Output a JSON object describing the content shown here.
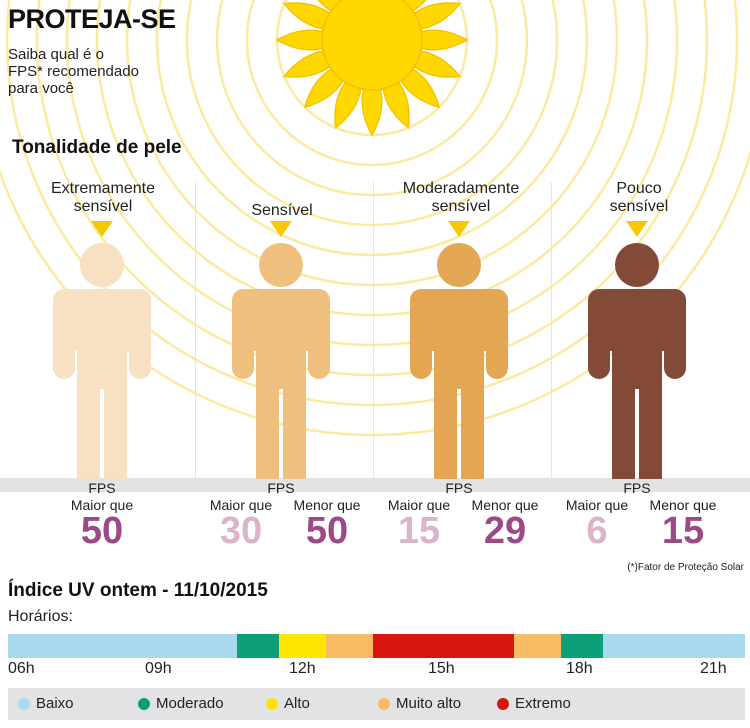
{
  "header": {
    "title": "PROTEJA-SE",
    "subtitle_lines": [
      "Saiba qual é o",
      "FPS* recomendado",
      "para você"
    ]
  },
  "skin": {
    "heading": "Tonalidade de pele",
    "columns": [
      {
        "label_lines": [
          "Extremamente",
          "sensível"
        ],
        "color": "#f8e1c3",
        "fps_label": "FPS",
        "comparisons": [
          {
            "label": "Maior que",
            "value": "50",
            "color": "#9c4a86"
          }
        ]
      },
      {
        "label_lines": [
          "Sensível"
        ],
        "color": "#efc07d",
        "fps_label": "FPS",
        "comparisons": [
          {
            "label": "Maior que",
            "value": "30",
            "color": "#d9b4cb"
          },
          {
            "label": "Menor que",
            "value": "50",
            "color": "#9c4a86"
          }
        ]
      },
      {
        "label_lines": [
          "Moderadamente",
          "sensível"
        ],
        "color": "#e3a652",
        "fps_label": "FPS",
        "comparisons": [
          {
            "label": "Maior que",
            "value": "15",
            "color": "#d9b4cb"
          },
          {
            "label": "Menor que",
            "value": "29",
            "color": "#9c4a86"
          }
        ]
      },
      {
        "label_lines": [
          "Pouco",
          "sensível"
        ],
        "color": "#834a37",
        "fps_label": "FPS",
        "comparisons": [
          {
            "label": "Maior que",
            "value": "6",
            "color": "#d9b4cb"
          },
          {
            "label": "Menor que",
            "value": "15",
            "color": "#9c4a86"
          }
        ]
      }
    ],
    "footnote": "(*)Fator de Proteção Solar"
  },
  "uv": {
    "title": "Índice UV ontem - 11/10/2015",
    "hours_label": "Horários:",
    "hour_ticks": [
      "06h",
      "09h",
      "12h",
      "15h",
      "18h",
      "21h"
    ],
    "segments": [
      {
        "level": "Baixo",
        "from": 6.0,
        "to": 10.88
      },
      {
        "level": "Moderado",
        "from": 10.88,
        "to": 11.78
      },
      {
        "level": "Alto",
        "from": 11.78,
        "to": 12.78
      },
      {
        "level": "Muito alto",
        "from": 12.78,
        "to": 13.78
      },
      {
        "level": "Extremo",
        "from": 13.78,
        "to": 16.78
      },
      {
        "level": "Muito alto",
        "from": 16.78,
        "to": 17.78
      },
      {
        "level": "Moderado",
        "from": 17.78,
        "to": 18.68
      },
      {
        "level": "Baixo",
        "from": 18.68,
        "to": 21.7
      }
    ],
    "legend": [
      {
        "label": "Baixo",
        "color": "#a8d9ee"
      },
      {
        "label": "Moderado",
        "color": "#0f9f78"
      },
      {
        "label": "Alto",
        "color": "#ffe600"
      },
      {
        "label": "Muito alto",
        "color": "#f6bb63"
      },
      {
        "label": "Extremo",
        "color": "#d9150f"
      }
    ]
  },
  "colors": {
    "sun": "#ffd800",
    "rings": "#fbeaa0",
    "pointer": "#f6c800"
  }
}
